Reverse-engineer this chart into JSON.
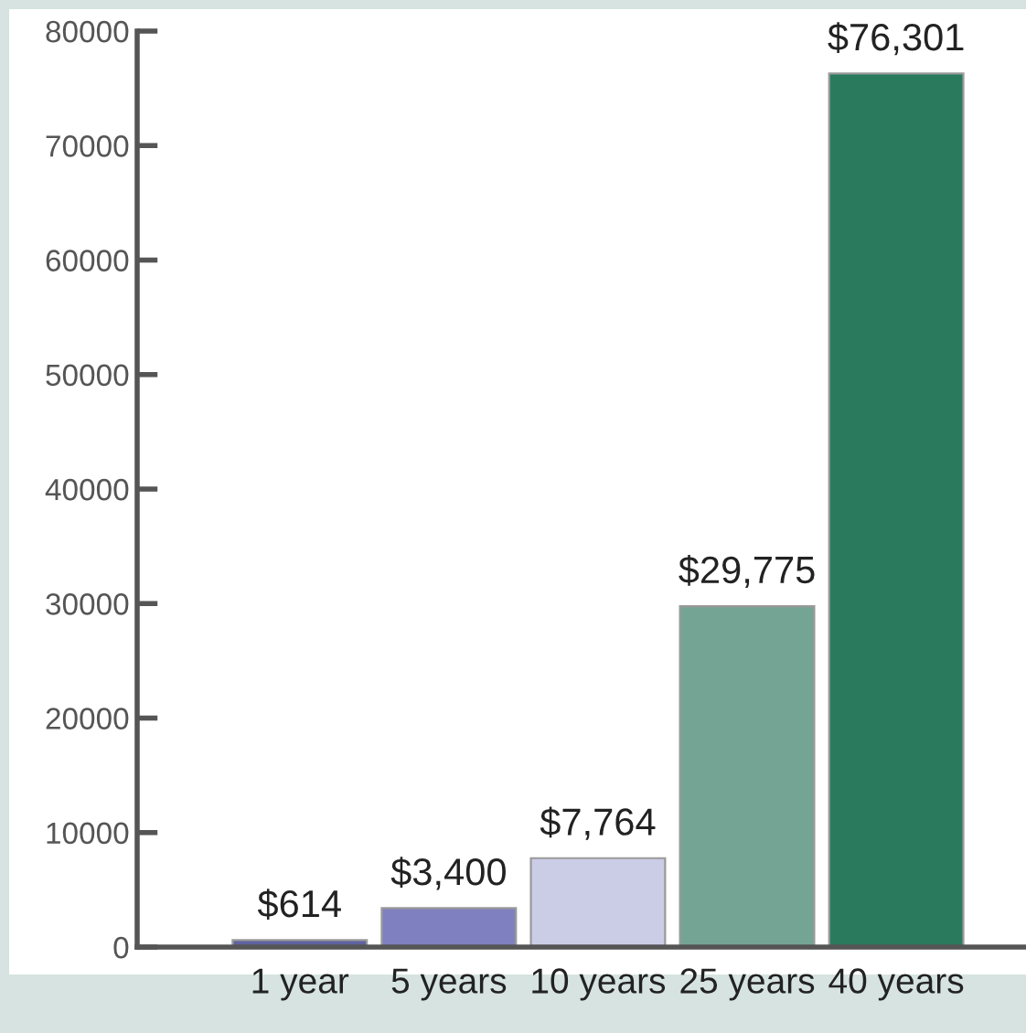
{
  "chart_data": {
    "type": "bar",
    "categories": [
      "1 year",
      "5 years",
      "10 years",
      "25 years",
      "40 years"
    ],
    "values": [
      614,
      3400,
      7764,
      29775,
      76301
    ],
    "value_labels": [
      "$614",
      "$3,400",
      "$7,764",
      "$29,775",
      "$76,301"
    ],
    "colors": [
      "#5f63a0",
      "#7e80bf",
      "#cbcce6",
      "#74a594",
      "#2a7a5e"
    ],
    "ylim": [
      0,
      80000
    ],
    "yticks": [
      0,
      10000,
      20000,
      30000,
      40000,
      50000,
      60000,
      70000,
      80000
    ],
    "grid": false,
    "legend": false
  }
}
